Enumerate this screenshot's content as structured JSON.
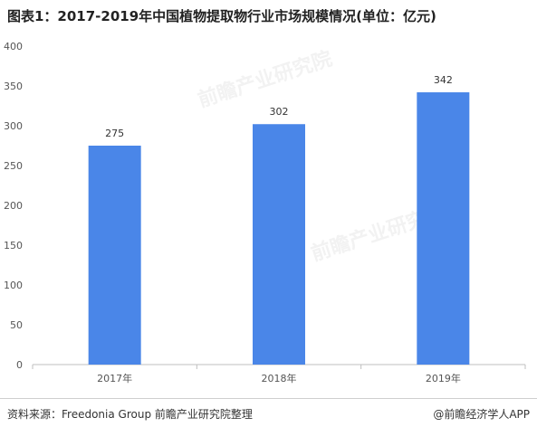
{
  "title": "图表1：2017-2019年中国植物提取物行业市场规模情况(单位：亿元)",
  "footer": {
    "source": "资料来源：Freedonia Group 前瞻产业研究院整理",
    "brand": "@前瞻经济学人APP"
  },
  "watermark": "前瞻产业研究院",
  "colors": {
    "bar": "#4a86e8",
    "axis": "#bfbfbf"
  },
  "chart_data": {
    "type": "bar",
    "categories": [
      "2017年",
      "2018年",
      "2019年"
    ],
    "values": [
      275,
      302,
      342
    ],
    "ylim": [
      0,
      400
    ],
    "yticks": [
      0,
      50,
      100,
      150,
      200,
      250,
      300,
      350,
      400
    ],
    "grid": false,
    "legend": "none"
  }
}
